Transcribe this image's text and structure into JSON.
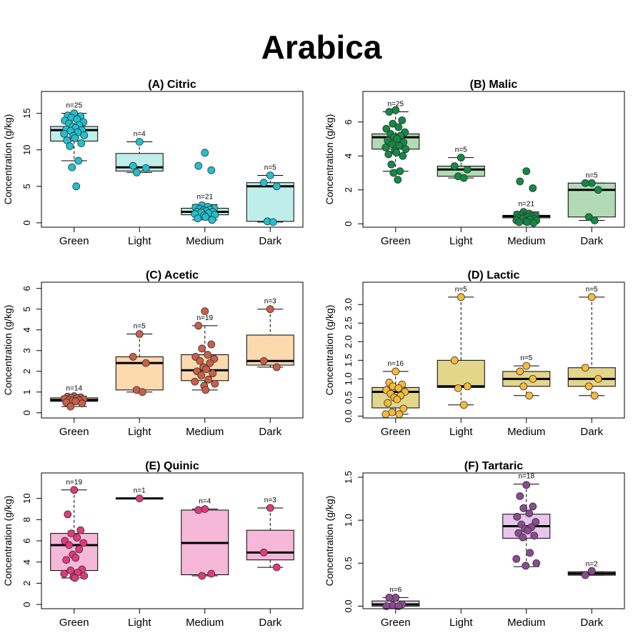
{
  "title": "Arabica",
  "chart_data": [
    {
      "type": "boxplot",
      "title": "(A) Citric",
      "ylabel": "Concentration (g/kg)",
      "categories": [
        "Green",
        "Light",
        "Medium",
        "Dark"
      ],
      "ylim": [
        -0.6,
        18
      ],
      "yticks": [
        0,
        5,
        10,
        15
      ],
      "yticklabels": [
        "0",
        "5",
        "10",
        "15"
      ],
      "box_color": "#bfeeea",
      "point_color": "#1fc1cf",
      "boxes": [
        {
          "category": "Green",
          "q1": 11.2,
          "median": 12.7,
          "q3": 13.2,
          "whisker_low": 8.5,
          "whisker_high": 15.0,
          "n_label": "n=25"
        },
        {
          "category": "Light",
          "q1": 7.1,
          "median": 7.6,
          "q3": 9.5,
          "whisker_low": 6.9,
          "whisker_high": 11.1,
          "n_label": "n=4"
        },
        {
          "category": "Medium",
          "q1": 1.1,
          "median": 1.5,
          "q3": 2.0,
          "whisker_low": 0.4,
          "whisker_high": 2.5,
          "n_label": "n=21"
        },
        {
          "category": "Dark",
          "q1": 0.2,
          "median": 5.0,
          "q3": 5.5,
          "whisker_low": 0.1,
          "whisker_high": 6.5,
          "n_label": "n=5"
        }
      ],
      "points": [
        [
          15.0,
          14.7,
          14.6,
          14.4,
          14.2,
          14.0,
          13.8,
          13.6,
          13.4,
          13.2,
          13.0,
          12.8,
          12.7,
          12.6,
          12.4,
          12.2,
          12.0,
          11.9,
          11.6,
          11.3,
          10.9,
          10.5,
          8.5,
          7.6,
          5.0
        ],
        [
          11.1,
          7.8,
          7.5,
          6.9
        ],
        [
          9.6,
          7.8,
          7.2,
          2.4,
          2.2,
          2.1,
          2.0,
          1.9,
          1.8,
          1.7,
          1.6,
          1.5,
          1.5,
          1.4,
          1.3,
          1.2,
          1.1,
          1.0,
          0.8,
          0.6,
          0.4
        ],
        [
          6.5,
          5.5,
          5.0,
          0.2,
          0.1
        ]
      ]
    },
    {
      "type": "boxplot",
      "title": "(B) Malic",
      "ylabel": "Concentration (g/kg)",
      "categories": [
        "Green",
        "Light",
        "Medium",
        "Dark"
      ],
      "ylim": [
        -0.2,
        7.8
      ],
      "yticks": [
        0,
        2,
        4,
        6
      ],
      "yticklabels": [
        "0",
        "2",
        "4",
        "6"
      ],
      "box_color": "#b2dbb5",
      "point_color": "#128a44",
      "boxes": [
        {
          "category": "Green",
          "q1": 4.4,
          "median": 5.1,
          "q3": 5.3,
          "whisker_low": 3.1,
          "whisker_high": 6.6,
          "n_label": "n=25"
        },
        {
          "category": "Light",
          "q1": 2.8,
          "median": 3.2,
          "q3": 3.4,
          "whisker_low": 2.7,
          "whisker_high": 3.9,
          "n_label": "n=5"
        },
        {
          "category": "Medium",
          "q1": 0.35,
          "median": 0.45,
          "q3": 0.5,
          "whisker_low": 0.1,
          "whisker_high": 0.7,
          "n_label": "n=21"
        },
        {
          "category": "Dark",
          "q1": 0.4,
          "median": 2.0,
          "q3": 2.4,
          "whisker_low": 0.2,
          "whisker_high": 2.4,
          "n_label": "n=5"
        }
      ],
      "points": [
        [
          6.7,
          6.6,
          6.1,
          5.9,
          5.7,
          5.6,
          5.4,
          5.3,
          5.2,
          5.1,
          5.0,
          4.9,
          4.8,
          4.7,
          4.6,
          4.5,
          4.4,
          4.3,
          4.2,
          4.1,
          4.0,
          3.5,
          3.1,
          3.0,
          2.6
        ],
        [
          3.9,
          3.4,
          3.2,
          2.8,
          2.7
        ],
        [
          3.1,
          2.5,
          2.1,
          0.7,
          0.6,
          0.55,
          0.5,
          0.5,
          0.45,
          0.4,
          0.4,
          0.35,
          0.3,
          0.3,
          0.25,
          0.2,
          0.2,
          0.15,
          0.1,
          0.1,
          0.05
        ],
        [
          2.4,
          2.4,
          2.0,
          0.4,
          0.2
        ]
      ]
    },
    {
      "type": "boxplot",
      "title": "(C) Acetic",
      "ylabel": "Concentration (g/kg)",
      "categories": [
        "Green",
        "Light",
        "Medium",
        "Dark"
      ],
      "ylim": [
        -0.25,
        6.3
      ],
      "yticks": [
        0,
        1,
        2,
        3,
        4,
        5,
        6
      ],
      "yticklabels": [
        "0",
        "1",
        "2",
        "3",
        "4",
        "5",
        "6"
      ],
      "box_color": "#fdd9ae",
      "point_color": "#c95f48",
      "boxes": [
        {
          "category": "Green",
          "q1": 0.55,
          "median": 0.62,
          "q3": 0.72,
          "whisker_low": 0.3,
          "whisker_high": 0.8,
          "n_label": "n=14"
        },
        {
          "category": "Light",
          "q1": 1.1,
          "median": 2.4,
          "q3": 2.7,
          "whisker_low": 1.0,
          "whisker_high": 3.8,
          "n_label": "n=5"
        },
        {
          "category": "Medium",
          "q1": 1.55,
          "median": 2.05,
          "q3": 2.8,
          "whisker_low": 1.1,
          "whisker_high": 4.2,
          "n_label": "n=19"
        },
        {
          "category": "Dark",
          "q1": 2.3,
          "median": 2.5,
          "q3": 3.75,
          "whisker_low": 2.2,
          "whisker_high": 5.0,
          "n_label": "n=3"
        }
      ],
      "points": [
        [
          0.8,
          0.78,
          0.75,
          0.72,
          0.7,
          0.68,
          0.65,
          0.62,
          0.6,
          0.58,
          0.55,
          0.5,
          0.45,
          0.3
        ],
        [
          3.8,
          2.7,
          2.4,
          1.1,
          1.0
        ],
        [
          4.9,
          4.2,
          3.3,
          3.1,
          2.8,
          2.7,
          2.6,
          2.5,
          2.4,
          2.2,
          2.1,
          2.0,
          1.9,
          1.8,
          1.6,
          1.5,
          1.4,
          1.3,
          1.1
        ],
        [
          5.0,
          2.5,
          2.2
        ]
      ]
    },
    {
      "type": "boxplot",
      "title": "(D) Lactic",
      "ylabel": "Concentration (g/kg)",
      "categories": [
        "Green",
        "Light",
        "Medium",
        "Dark"
      ],
      "ylim": [
        -0.05,
        3.6
      ],
      "yticks": [
        0,
        0.5,
        1.0,
        1.5,
        2.0,
        2.5,
        3.0
      ],
      "yticklabels": [
        "0.0",
        "0.5",
        "1.0",
        "1.5",
        "2.0",
        "2.5",
        "3.0"
      ],
      "box_color": "#e3d68b",
      "point_color": "#f6ba38",
      "boxes": [
        {
          "category": "Green",
          "q1": 0.22,
          "median": 0.65,
          "q3": 0.77,
          "whisker_low": 0.05,
          "whisker_high": 1.2,
          "n_label": "n=16"
        },
        {
          "category": "Light",
          "q1": 0.77,
          "median": 0.8,
          "q3": 1.5,
          "whisker_low": 0.3,
          "whisker_high": 3.2,
          "n_label": "n=5"
        },
        {
          "category": "Medium",
          "q1": 0.8,
          "median": 1.0,
          "q3": 1.2,
          "whisker_low": 0.55,
          "whisker_high": 1.35,
          "n_label": "n=5"
        },
        {
          "category": "Dark",
          "q1": 0.8,
          "median": 1.0,
          "q3": 1.3,
          "whisker_low": 0.55,
          "whisker_high": 3.2,
          "n_label": "n=5"
        }
      ],
      "points": [
        [
          1.2,
          0.9,
          0.85,
          0.8,
          0.75,
          0.7,
          0.65,
          0.6,
          0.55,
          0.5,
          0.45,
          0.35,
          0.2,
          0.1,
          0.05,
          0.05
        ],
        [
          3.2,
          1.5,
          0.8,
          0.75,
          0.3
        ],
        [
          1.35,
          1.2,
          1.0,
          0.8,
          0.55
        ],
        [
          3.2,
          1.3,
          1.0,
          0.8,
          0.55
        ]
      ]
    },
    {
      "type": "boxplot",
      "title": "(E) Quinic",
      "ylabel": "Concentration (g/kg)",
      "categories": [
        "Green",
        "Light",
        "Medium",
        "Dark"
      ],
      "ylim": [
        -0.4,
        12.4
      ],
      "yticks": [
        0,
        2,
        4,
        6,
        8,
        10
      ],
      "yticklabels": [
        "0",
        "2",
        "4",
        "6",
        "8",
        "10"
      ],
      "box_color": "#f5b8d9",
      "point_color": "#e03a7d",
      "boxes": [
        {
          "category": "Green",
          "q1": 3.2,
          "median": 5.6,
          "q3": 6.7,
          "whisker_low": 2.5,
          "whisker_high": 10.8,
          "n_label": "n=19"
        },
        {
          "category": "Light",
          "q1": 10.0,
          "median": 10.0,
          "q3": 10.0,
          "whisker_low": 10.0,
          "whisker_high": 10.0,
          "n_label": "n=1"
        },
        {
          "category": "Medium",
          "q1": 2.8,
          "median": 5.8,
          "q3": 8.9,
          "whisker_low": 2.7,
          "whisker_high": 9.0,
          "n_label": "n=4"
        },
        {
          "category": "Dark",
          "q1": 4.2,
          "median": 4.9,
          "q3": 7.0,
          "whisker_low": 3.5,
          "whisker_high": 9.1,
          "n_label": "n=3"
        }
      ],
      "points": [
        [
          10.8,
          8.5,
          7.0,
          6.7,
          6.3,
          6.0,
          5.8,
          5.6,
          5.2,
          4.7,
          4.4,
          4.2,
          3.3,
          3.2,
          3.0,
          2.9,
          2.7,
          2.6,
          2.5
        ],
        [
          10.0
        ],
        [
          9.0,
          8.9,
          2.9,
          2.7
        ],
        [
          9.1,
          4.9,
          3.5
        ]
      ]
    },
    {
      "type": "boxplot",
      "title": "(F) Tartaric",
      "ylabel": "Concentration (g/kg)",
      "categories": [
        "Green",
        "Light",
        "Medium",
        "Dark"
      ],
      "ylim": [
        -0.03,
        1.55
      ],
      "yticks": [
        0,
        0.5,
        1.0,
        1.5
      ],
      "yticklabels": [
        "0.0",
        "0.5",
        "1.0",
        "1.5"
      ],
      "box_color": "#e9c5ec",
      "point_color": "#8a4b92",
      "boxes": [
        {
          "category": "Green",
          "q1": 0.0,
          "median": 0.02,
          "q3": 0.06,
          "whisker_low": 0.0,
          "whisker_high": 0.1,
          "n_label": "n=6"
        },
        {
          "category": "Medium",
          "q1": 0.79,
          "median": 0.93,
          "q3": 1.07,
          "whisker_low": 0.46,
          "whisker_high": 1.42,
          "n_label": "n=18"
        },
        {
          "category": "Dark",
          "q1": 0.36,
          "median": 0.38,
          "q3": 0.4,
          "whisker_low": 0.36,
          "whisker_high": 0.4,
          "n_label": "n=2"
        }
      ],
      "points": [
        [
          0.1,
          0.1,
          0.02,
          0.01,
          0.0,
          0.0
        ],
        [],
        [
          1.41,
          1.28,
          1.16,
          1.14,
          1.08,
          1.04,
          0.98,
          0.95,
          0.92,
          0.9,
          0.88,
          0.85,
          0.82,
          0.8,
          0.62,
          0.55,
          0.5,
          0.47
        ],
        [
          0.41,
          0.36
        ]
      ]
    }
  ]
}
